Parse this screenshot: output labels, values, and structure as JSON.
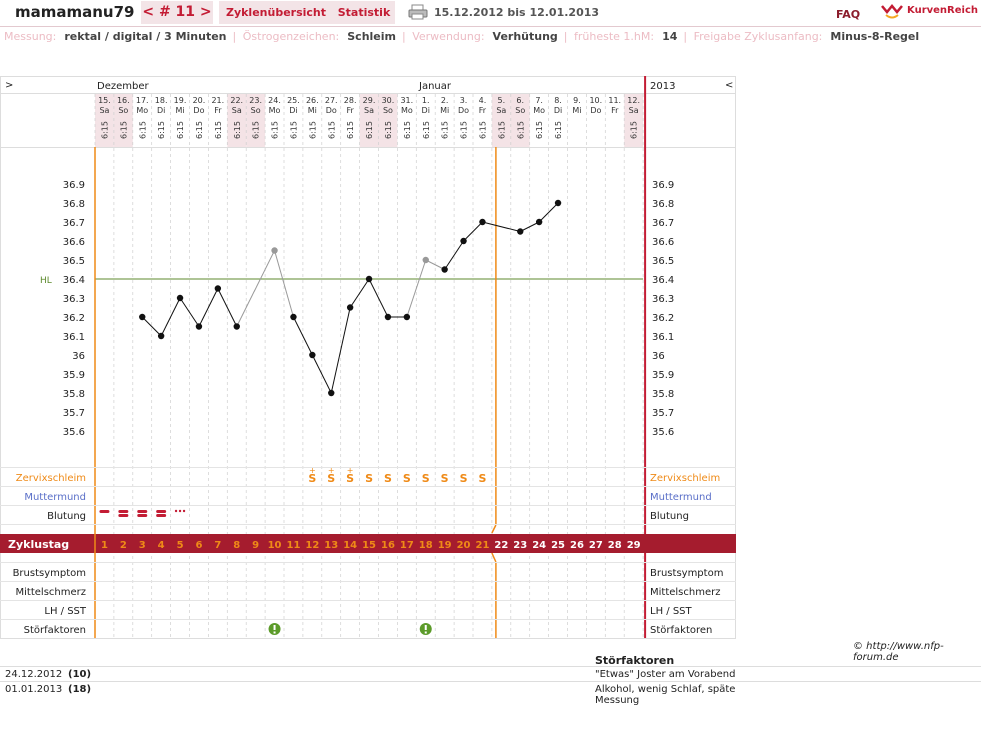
{
  "header": {
    "username": "mamamanu79",
    "cycle_label": "< # 11 >",
    "tabs": [
      "Zyklenübersicht",
      "Statistik"
    ],
    "date_range": "15.12.2012 bis 12.01.2013",
    "faq": "FAQ",
    "logo_text": "KurvenReich"
  },
  "meta": [
    {
      "label": "Messung:",
      "value": "rektal / digital / 3 Minuten"
    },
    {
      "label": "Östrogenzeichen:",
      "value": "Schleim"
    },
    {
      "label": "Verwendung:",
      "value": "Verhütung"
    },
    {
      "label": "früheste 1.hM:",
      "value": "14"
    },
    {
      "label": "Freigabe Zyklusanfang:",
      "value": "Minus-8-Regel"
    }
  ],
  "nav": {
    "left": ">",
    "right": "<"
  },
  "months": {
    "dec": "Dezember",
    "jan": "Januar",
    "year": "2013"
  },
  "days": [
    {
      "d": "15.",
      "w": "Sa"
    },
    {
      "d": "16.",
      "w": "So"
    },
    {
      "d": "17.",
      "w": "Mo"
    },
    {
      "d": "18.",
      "w": "Di"
    },
    {
      "d": "19.",
      "w": "Mi"
    },
    {
      "d": "20.",
      "w": "Do"
    },
    {
      "d": "21.",
      "w": "Fr"
    },
    {
      "d": "22.",
      "w": "Sa"
    },
    {
      "d": "23.",
      "w": "So"
    },
    {
      "d": "24.",
      "w": "Mo"
    },
    {
      "d": "25.",
      "w": "Di"
    },
    {
      "d": "26.",
      "w": "Mi"
    },
    {
      "d": "27.",
      "w": "Do"
    },
    {
      "d": "28.",
      "w": "Fr"
    },
    {
      "d": "29.",
      "w": "Sa"
    },
    {
      "d": "30.",
      "w": "So"
    },
    {
      "d": "31.",
      "w": "Mo"
    },
    {
      "d": "1.",
      "w": "Di"
    },
    {
      "d": "2.",
      "w": "Mi"
    },
    {
      "d": "3.",
      "w": "Do"
    },
    {
      "d": "4.",
      "w": "Fr"
    },
    {
      "d": "5.",
      "w": "Sa"
    },
    {
      "d": "6.",
      "w": "So"
    },
    {
      "d": "7.",
      "w": "Mo"
    },
    {
      "d": "8.",
      "w": "Di"
    },
    {
      "d": "9.",
      "w": "Mi"
    },
    {
      "d": "10.",
      "w": "Do"
    },
    {
      "d": "11.",
      "w": "Fr"
    },
    {
      "d": "12.",
      "w": "Sa"
    }
  ],
  "times": [
    "6:15",
    "6:15",
    "6:15",
    "6:15",
    "6:15",
    "6:15",
    "6:15",
    "6:15",
    "6:15",
    "6:15",
    "6:15",
    "6:15",
    "6:15",
    "6:15",
    "6:15",
    "6:15",
    "6:15",
    "6:15",
    "6:15",
    "6:15",
    "6:15",
    "6:15",
    "6:15",
    "6:15",
    "6:15",
    "",
    "",
    "",
    "6:15"
  ],
  "highlight_days": [
    0,
    1,
    7,
    8,
    14,
    15,
    21,
    22,
    28
  ],
  "colors": {
    "accent": "#c31c34",
    "orange": "#ef8a17",
    "zyklus_bar": "#a51c2e",
    "hl": "#5c8a2c",
    "grid": "#cfcfcf",
    "hl_bg": "#f4e3e6"
  },
  "chart_data": {
    "type": "line",
    "y_ticks": [
      "36.9",
      "36.8",
      "36.7",
      "36.6",
      "36.5",
      "36.4",
      "36.3",
      "36.2",
      "36.1",
      "36",
      "35.9",
      "35.8",
      "35.7",
      "35.6"
    ],
    "ylim": [
      35.6,
      36.9
    ],
    "hl_label": "HL",
    "hl_value": 36.4,
    "temps": [
      null,
      null,
      36.2,
      36.1,
      36.3,
      36.15,
      36.35,
      36.15,
      null,
      36.55,
      36.2,
      36.0,
      35.8,
      36.25,
      36.4,
      36.2,
      36.2,
      36.5,
      36.45,
      36.6,
      36.7,
      null,
      36.65,
      36.7,
      36.8,
      null,
      null,
      null,
      null
    ],
    "excluded_days": [
      9,
      17
    ],
    "coverline_day": 21,
    "cycle_start_line_day": 0
  },
  "rows": {
    "zervix": "Zervixschleim",
    "mumu": "Muttermund",
    "blutung": "Blutung",
    "zyklustag": "Zyklustag",
    "brust": "Brustsymptom",
    "mittel": "Mittelschmerz",
    "lh": "LH / SST",
    "stoer": "Störfaktoren"
  },
  "mucus": [
    "",
    "",
    "",
    "",
    "",
    "",
    "",
    "",
    "",
    "",
    "",
    "S+",
    "S+",
    "S+",
    "S",
    "S",
    "S",
    "S",
    "S",
    "S",
    "S",
    "",
    "",
    "",
    "",
    "",
    "",
    "",
    ""
  ],
  "bleeding": [
    "heavy",
    "heavy",
    "heavy",
    "heavy",
    "spot",
    "",
    "",
    "",
    "",
    "",
    "",
    "",
    "",
    "",
    "",
    "",
    "",
    "",
    "",
    "",
    "",
    "",
    "",
    "",
    "",
    "",
    "",
    "",
    ""
  ],
  "cycle_days": [
    "1",
    "2",
    "3",
    "4",
    "5",
    "6",
    "7",
    "8",
    "9",
    "10",
    "11",
    "12",
    "13",
    "14",
    "15",
    "16",
    "17",
    "18",
    "19",
    "20",
    "21",
    "22",
    "23",
    "24",
    "25",
    "26",
    "27",
    "28",
    "29"
  ],
  "disturb_days": [
    9,
    17
  ],
  "copyright": "© http://www.nfp-forum.de",
  "stoerfaktoren": {
    "title": "Störfaktoren",
    "entries": [
      {
        "date": "24.12.2012",
        "day": "(10)",
        "note": "\"Etwas\" Joster am Vorabend"
      },
      {
        "date": "01.01.2013",
        "day": "(18)",
        "note": "Alkohol, wenig Schlaf, späte Messung"
      }
    ]
  }
}
